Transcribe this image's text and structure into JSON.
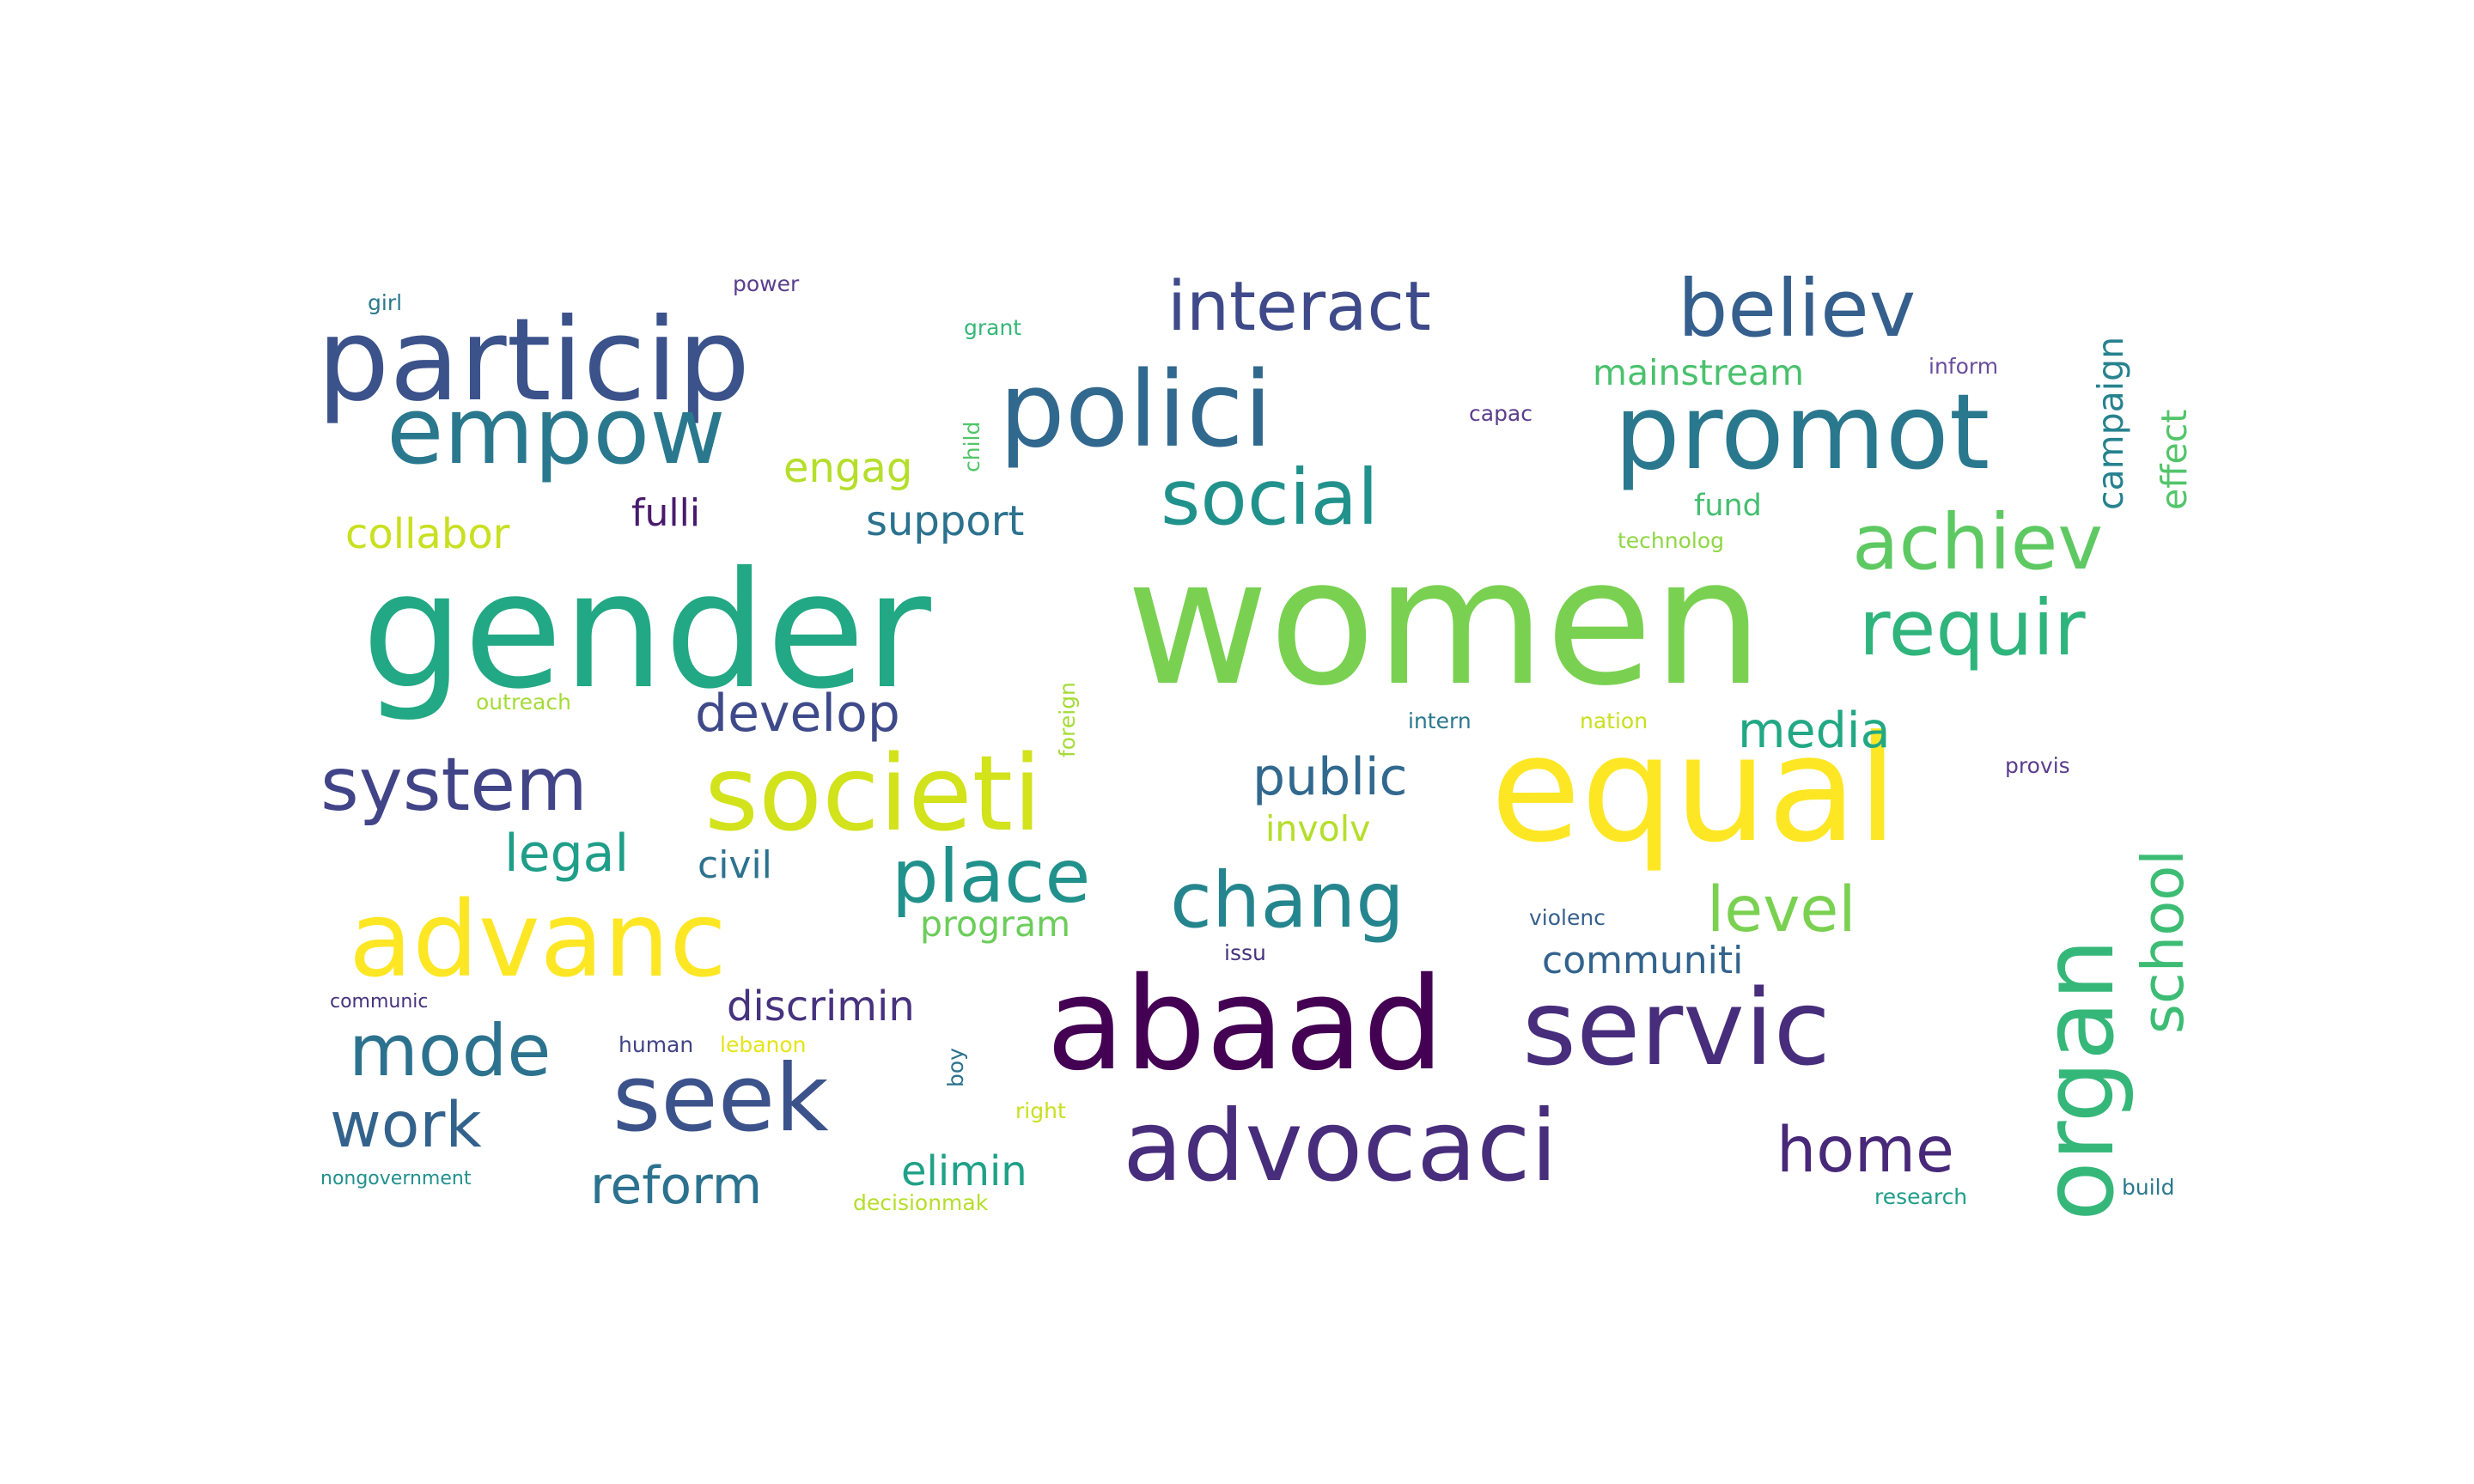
{
  "words": [
    {
      "text": "women",
      "color": "#7ad151"
    },
    {
      "text": "gender",
      "color": "#22a884"
    },
    {
      "text": "equal",
      "color": "#fde725"
    },
    {
      "text": "abaad",
      "color": "#440154"
    },
    {
      "text": "particip",
      "color": "#3b528b"
    },
    {
      "text": "polici",
      "color": "#31688e"
    },
    {
      "text": "promot",
      "color": "#2a788e"
    },
    {
      "text": "empow",
      "color": "#2a788e"
    },
    {
      "text": "societi",
      "color": "#d2e21b"
    },
    {
      "text": "advanc",
      "color": "#fde725"
    },
    {
      "text": "servic",
      "color": "#472d7b"
    },
    {
      "text": "advocaci",
      "color": "#472d7b"
    },
    {
      "text": "organ",
      "color": "#35b779"
    },
    {
      "text": "seek",
      "color": "#3b528b"
    },
    {
      "text": "believ",
      "color": "#355f8d"
    },
    {
      "text": "interact",
      "color": "#3e4a89"
    },
    {
      "text": "social",
      "color": "#21918c"
    },
    {
      "text": "achiev",
      "color": "#5ec962"
    },
    {
      "text": "requir",
      "color": "#2fb47c"
    },
    {
      "text": "system",
      "color": "#414487"
    },
    {
      "text": "chang",
      "color": "#25858e"
    },
    {
      "text": "place",
      "color": "#21918c"
    },
    {
      "text": "mode",
      "color": "#2c728e"
    },
    {
      "text": "work",
      "color": "#33638d"
    },
    {
      "text": "home",
      "color": "#482878"
    },
    {
      "text": "school",
      "color": "#3dbc74"
    },
    {
      "text": "level",
      "color": "#7ad151"
    },
    {
      "text": "public",
      "color": "#31688e"
    },
    {
      "text": "develop",
      "color": "#3e4a89"
    },
    {
      "text": "media",
      "color": "#22a884"
    },
    {
      "text": "legal",
      "color": "#1f9e89"
    },
    {
      "text": "reform",
      "color": "#2c728e"
    },
    {
      "text": "discrimin",
      "color": "#46327e"
    },
    {
      "text": "elimin",
      "color": "#1fa187"
    },
    {
      "text": "communiti",
      "color": "#33638d"
    },
    {
      "text": "support",
      "color": "#2c728e"
    },
    {
      "text": "collabor",
      "color": "#c8e020"
    },
    {
      "text": "fulli",
      "color": "#481a6c"
    },
    {
      "text": "engag",
      "color": "#b5de2b"
    },
    {
      "text": "mainstream",
      "color": "#4ac16d"
    },
    {
      "text": "civil",
      "color": "#2c728e"
    },
    {
      "text": "involv",
      "color": "#b5de2b"
    },
    {
      "text": "program",
      "color": "#6ccd5a"
    },
    {
      "text": "campaign",
      "color": "#26828e"
    },
    {
      "text": "effect",
      "color": "#52c569"
    },
    {
      "text": "fund",
      "color": "#44bf70"
    },
    {
      "text": "technolog",
      "color": "#8fd744"
    },
    {
      "text": "girl",
      "color": "#2a788e"
    },
    {
      "text": "power",
      "color": "#5b3d8d"
    },
    {
      "text": "grant",
      "color": "#35b779"
    },
    {
      "text": "inform",
      "color": "#6a4d9d"
    },
    {
      "text": "capac",
      "color": "#5b3d8d"
    },
    {
      "text": "child",
      "color": "#52c569"
    },
    {
      "text": "outreach",
      "color": "#a5db36"
    },
    {
      "text": "foreign",
      "color": "#a5db36"
    },
    {
      "text": "intern",
      "color": "#2a788e"
    },
    {
      "text": "nation",
      "color": "#c8e020"
    },
    {
      "text": "provis",
      "color": "#5b3d8d"
    },
    {
      "text": "violenc",
      "color": "#355f8d"
    },
    {
      "text": "issu",
      "color": "#46327e"
    },
    {
      "text": "communic",
      "color": "#46327e"
    },
    {
      "text": "human",
      "color": "#414487"
    },
    {
      "text": "lebanon",
      "color": "#e5e419"
    },
    {
      "text": "boy",
      "color": "#2c728e"
    },
    {
      "text": "right",
      "color": "#c8e020"
    },
    {
      "text": "nongovernment",
      "color": "#21918c"
    },
    {
      "text": "decisionmak",
      "color": "#b5de2b"
    },
    {
      "text": "research",
      "color": "#1f9e89"
    },
    {
      "text": "build",
      "color": "#2a788e"
    }
  ]
}
